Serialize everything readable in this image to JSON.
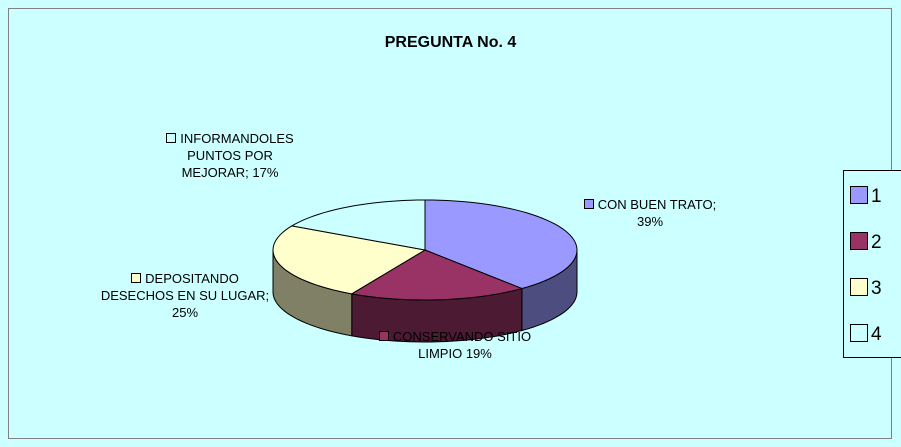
{
  "chart_data": {
    "type": "pie",
    "title": "PREGUNTA No. 4",
    "categories": [
      "1",
      "2",
      "3",
      "4"
    ],
    "values": [
      39,
      19,
      25,
      17
    ],
    "value_labels": [
      "CON BUEN TRATO; 39%",
      "CONSERVANDO SITIO LIMPIO 19%",
      "DEPOSITANDO DESECHOS EN SU LUGAR; 25%",
      "INFORMANDOLES PUNTOS POR MEJORAR; 17%"
    ],
    "colors": [
      "#9999ff",
      "#993366",
      "#ffffcc",
      "#ccffff"
    ],
    "legend": "right"
  }
}
